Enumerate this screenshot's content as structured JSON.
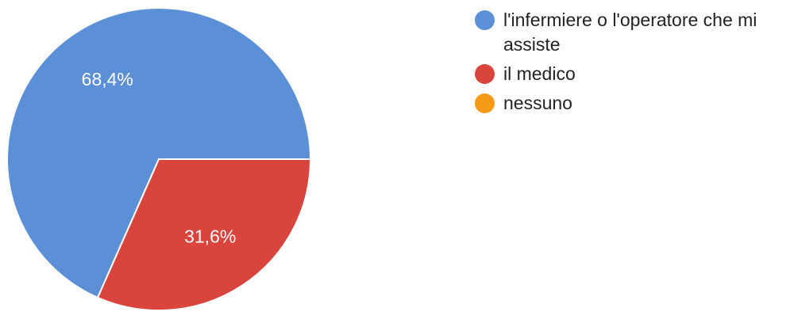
{
  "chart_data": {
    "type": "pie",
    "slices": [
      {
        "label": "l'infermiere o l'operatore che mi assiste",
        "value": 68.4,
        "display": "68,4%",
        "color": "#5b8fd6"
      },
      {
        "label": "il medico",
        "value": 31.6,
        "display": "31,6%",
        "color": "#d9443c"
      },
      {
        "label": "nessuno",
        "value": 0,
        "display": "",
        "color": "#f59a17"
      }
    ],
    "legend_position": "right"
  }
}
